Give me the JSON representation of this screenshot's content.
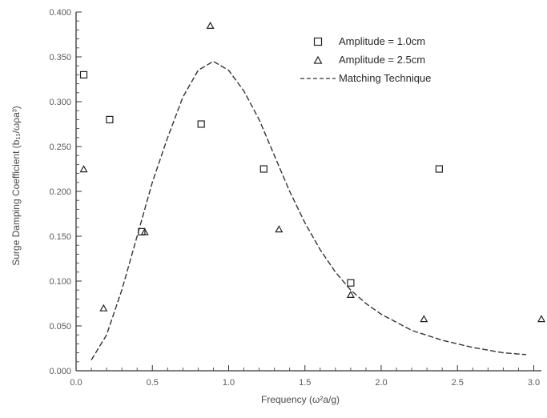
{
  "chart_data": {
    "type": "scatter",
    "xlabel": "Frequency (ω²a/g)",
    "ylabel": "Surge Damping Coefficient (b₁₁/ωρa³)",
    "xlim": [
      0.0,
      3.05
    ],
    "ylim": [
      0.0,
      0.4
    ],
    "grid": false,
    "legend_position": "top-right",
    "x_ticks": [
      "0.0",
      "0.5",
      "1.0",
      "1.5",
      "2.0",
      "2.5",
      "3.0"
    ],
    "y_ticks": [
      "0.000",
      "0.050",
      "0.100",
      "0.150",
      "0.200",
      "0.250",
      "0.300",
      "0.350",
      "0.400"
    ],
    "series": [
      {
        "name": "Amplitude = 1.0cm",
        "marker": "square",
        "x": [
          0.05,
          0.22,
          0.43,
          0.82,
          1.23,
          1.8,
          2.38
        ],
        "y": [
          0.33,
          0.28,
          0.155,
          0.275,
          0.225,
          0.098,
          0.225
        ]
      },
      {
        "name": "Amplitude = 2.5cm",
        "marker": "triangle",
        "x": [
          0.05,
          0.18,
          0.45,
          0.88,
          1.33,
          1.8,
          2.28,
          3.05
        ],
        "y": [
          0.225,
          0.07,
          0.155,
          0.385,
          0.158,
          0.085,
          0.058,
          0.058
        ]
      },
      {
        "name": "Matching Technique",
        "line": "dashed",
        "x": [
          0.1,
          0.2,
          0.3,
          0.4,
          0.5,
          0.6,
          0.7,
          0.8,
          0.9,
          1.0,
          1.1,
          1.2,
          1.3,
          1.4,
          1.5,
          1.6,
          1.7,
          1.8,
          1.9,
          2.0,
          2.2,
          2.4,
          2.6,
          2.8,
          2.95
        ],
        "y": [
          0.012,
          0.04,
          0.09,
          0.15,
          0.21,
          0.26,
          0.305,
          0.335,
          0.345,
          0.335,
          0.312,
          0.28,
          0.24,
          0.2,
          0.165,
          0.135,
          0.11,
          0.09,
          0.075,
          0.063,
          0.045,
          0.034,
          0.026,
          0.02,
          0.018
        ]
      }
    ]
  }
}
